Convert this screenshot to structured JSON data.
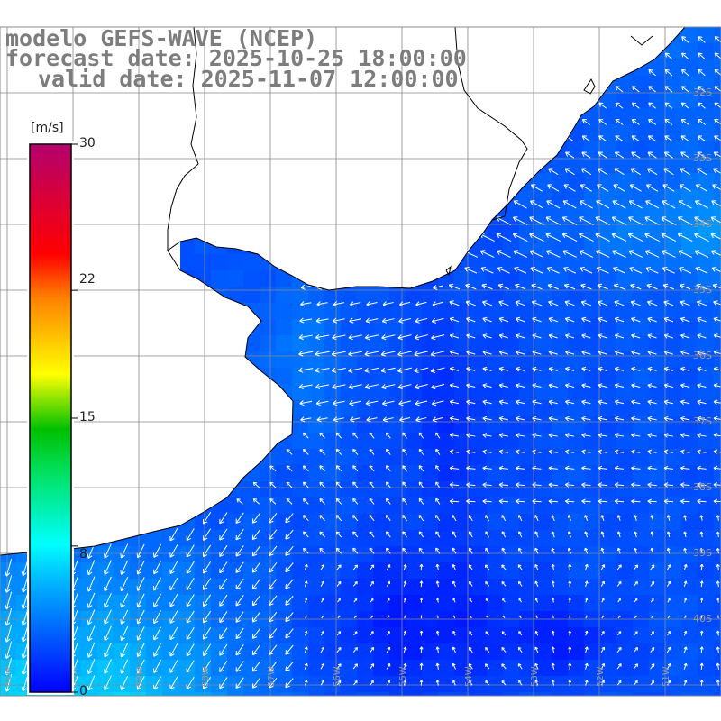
{
  "title": {
    "line1": "modelo GEFS-WAVE (NCEP)",
    "line2": "forecast date: 2025-10-25 18:00:00",
    "line3": "valid date: 2025-11-07 12:00:00"
  },
  "colorbar": {
    "unit": "[m/s]",
    "min": 0,
    "max": 30,
    "tick_labels": [
      "30",
      "22",
      "15",
      "8",
      "0"
    ],
    "tick_values": [
      30,
      22,
      15,
      8,
      0
    ],
    "colors": [
      "#0000ff",
      "#00b4ff",
      "#00ffff",
      "#00e060",
      "#00c000",
      "#ffff00",
      "#ff8000",
      "#ff0000",
      "#b4006e"
    ]
  },
  "map": {
    "lat_labels": [
      "32S",
      "33S",
      "34S",
      "35S",
      "36S",
      "37S",
      "38S",
      "39S",
      "40S"
    ],
    "lon_labels": [
      "61W",
      "60W",
      "59W",
      "58W",
      "57W",
      "56W",
      "55W",
      "54W",
      "53W",
      "52W",
      "51W"
    ],
    "colors": {
      "land": "#ffffff",
      "coast": "#000000",
      "grid": "#888888",
      "arrow": "#ffffff",
      "label": "#9a9a9a"
    }
  }
}
